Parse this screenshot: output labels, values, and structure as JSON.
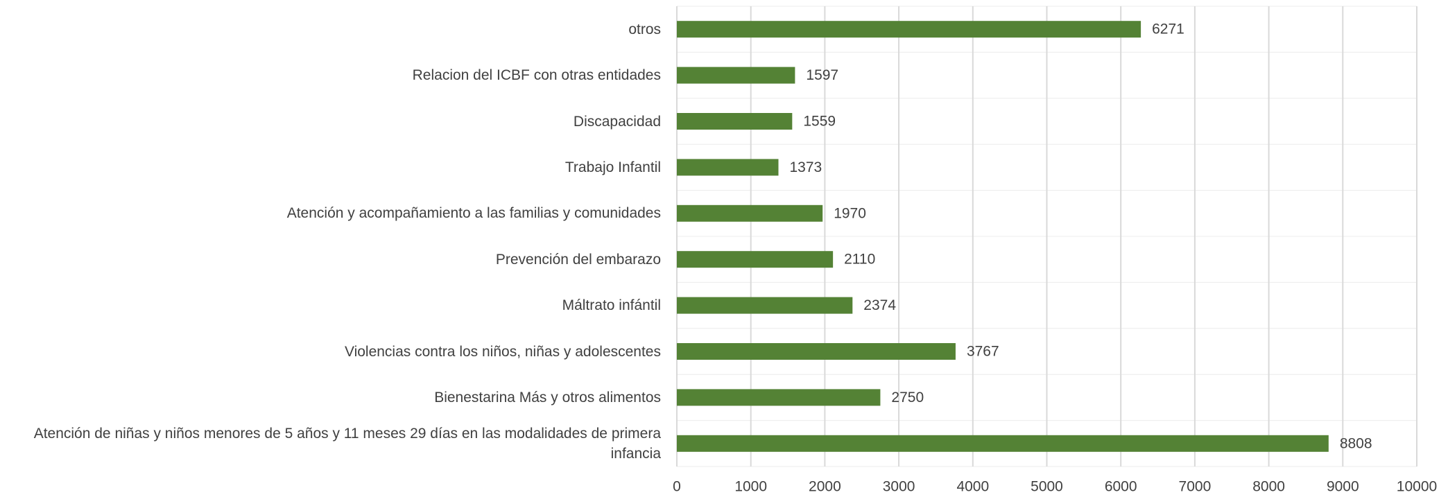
{
  "chart_data": {
    "type": "bar",
    "orientation": "horizontal",
    "categories": [
      "otros",
      "Relacion del  ICBF con otras entidades",
      "Discapacidad",
      "Trabajo Infantil",
      "Atención y acompañamiento a las familias y comunidades",
      "Prevención del embarazo",
      "Máltrato infántil",
      "Violencias contra los niños, niñas y adolescentes",
      "Bienestarina Más y otros alimentos",
      "Atención de niñas y niños menores de 5 años y 11 meses 29 días  en las modalidades de primera infancia"
    ],
    "values": [
      6271,
      1597,
      1559,
      1373,
      1970,
      2110,
      2374,
      3767,
      2750,
      8808
    ],
    "color": "#548235",
    "xlim": [
      0,
      10000
    ],
    "xticks": [
      0,
      1000,
      2000,
      3000,
      4000,
      5000,
      6000,
      7000,
      8000,
      9000,
      10000
    ],
    "grid": true
  }
}
